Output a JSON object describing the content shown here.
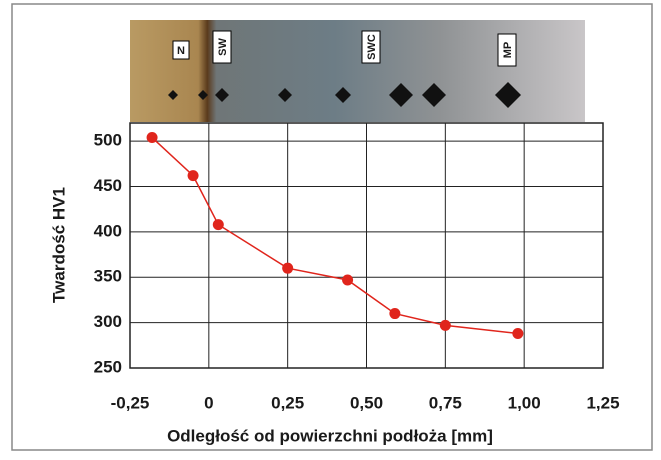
{
  "chart_data": {
    "type": "line",
    "x_label": "Odległość od powierzchni podłoża [mm]",
    "y_label": "Twardość HV1",
    "annotations": [
      "N",
      "SW",
      "SWC",
      "MP"
    ],
    "x": [
      -0.18,
      -0.05,
      0.03,
      0.25,
      0.44,
      0.59,
      0.75,
      0.98
    ],
    "series": [
      {
        "color": "#e0251c",
        "values": [
          504,
          462,
          408,
          360,
          347,
          310,
          297,
          288
        ]
      }
    ],
    "xlim": [
      -0.25,
      1.25
    ],
    "xticks": [
      {
        "value": -0.25,
        "label": "-0,25"
      },
      0,
      {
        "value": 0.25,
        "label": "0,25"
      },
      {
        "value": 0.5,
        "label": "0,50"
      },
      {
        "value": 0.75,
        "label": "0,75"
      },
      {
        "value": 1.0,
        "label": "1,00"
      },
      {
        "value": 1.25,
        "label": "1,25"
      }
    ],
    "ylim": [
      250,
      520
    ],
    "yticks": [
      250,
      300,
      350,
      400,
      450,
      500
    ],
    "grid": true
  }
}
